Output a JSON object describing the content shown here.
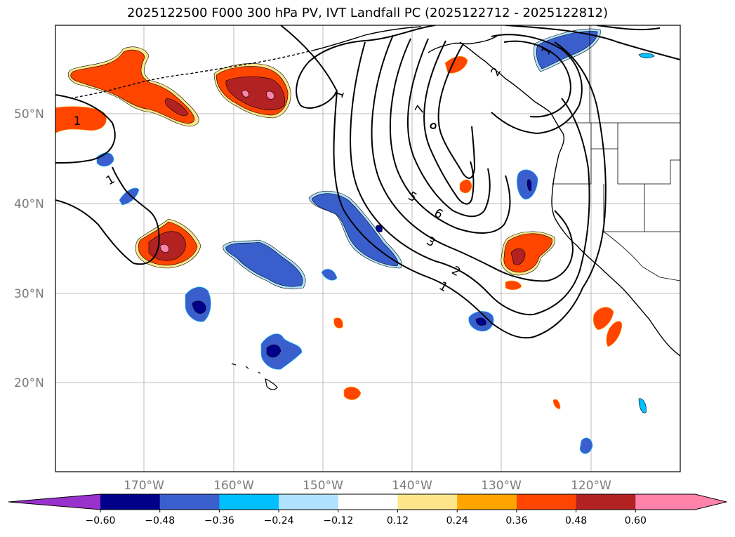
{
  "title": "2025122500 F000 300 hPa PV, IVT Landfall PC (2025122712 - 2025122812)",
  "lat_labels": [
    "50°N",
    "40°N",
    "30°N",
    "20°N"
  ],
  "lon_labels": [
    "170°W",
    "160°W",
    "150°W",
    "140°W",
    "130°W",
    "120°W"
  ],
  "contour_labels": [
    "1",
    "1",
    "1",
    "1",
    "2",
    "3",
    "5",
    "6",
    "7",
    "1",
    "2"
  ],
  "colorbar": {
    "ticks": [
      "−0.60",
      "−0.48",
      "−0.36",
      "−0.24",
      "−0.12",
      "0.12",
      "0.24",
      "0.36",
      "0.48",
      "0.60"
    ],
    "colors": [
      "#9932cc",
      "#00008b",
      "#3a5fcd",
      "#00bfff",
      "#b0e2ff",
      "#ffffff",
      "#fde68a",
      "#ffa500",
      "#ff4500",
      "#b22222",
      "#ff82ab",
      "#ff82ab"
    ]
  },
  "colors": {
    "frame": "#000000",
    "grid": "#bbbbbb",
    "label": "#7a7a7a"
  }
}
